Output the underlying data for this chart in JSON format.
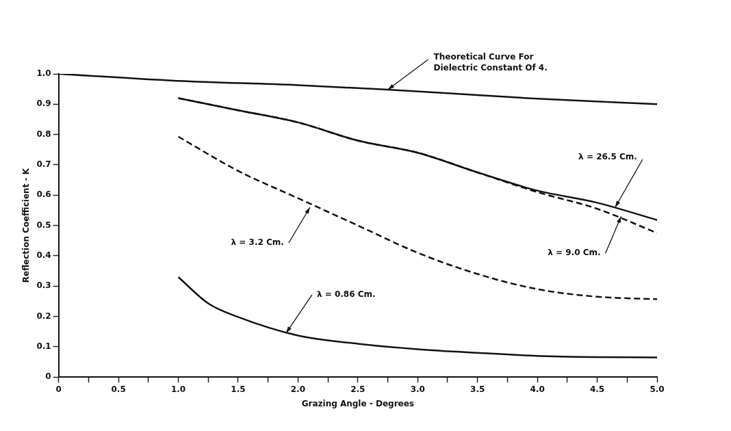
{
  "chart_data": {
    "type": "line",
    "xlabel": "Grazing Angle - Degrees",
    "ylabel": "Reflection Coefficient - K",
    "xlim": [
      0,
      5
    ],
    "ylim": [
      0,
      1
    ],
    "xticks": [
      0,
      {
        "value": 0.25,
        "label": null
      },
      0.5,
      {
        "value": 0.75,
        "label": null
      },
      {
        "value": 1,
        "label": "1.0"
      },
      {
        "value": 1.25,
        "label": null
      },
      1.5,
      {
        "value": 1.75,
        "label": null
      },
      {
        "value": 2,
        "label": "2.0"
      },
      {
        "value": 2.25,
        "label": null
      },
      2.5,
      {
        "value": 2.75,
        "label": null
      },
      {
        "value": 3,
        "label": "3.0"
      },
      {
        "value": 3.25,
        "label": null
      },
      3.5,
      {
        "value": 3.75,
        "label": null
      },
      {
        "value": 4,
        "label": "4.0"
      },
      {
        "value": 4.25,
        "label": null
      },
      4.5,
      {
        "value": 4.75,
        "label": null
      },
      {
        "value": 5,
        "label": "5.0"
      }
    ],
    "yticks": [
      0,
      0.1,
      0.2,
      0.3,
      0.4,
      0.5,
      0.6,
      0.7,
      0.8,
      0.9,
      {
        "value": 1,
        "label": "1.0"
      }
    ],
    "grid": false,
    "legend": false,
    "marker": "none",
    "series": [
      {
        "color": "#111111",
        "line_style": "solid",
        "x": [
          0,
          1,
          2,
          2.75,
          3.5,
          4,
          5
        ],
        "values": [
          1.0,
          0.977,
          0.963,
          0.948,
          0.93,
          0.918,
          0.9
        ]
      },
      {
        "color": "#111111",
        "line_style": "solid",
        "x": [
          1,
          1.5,
          2,
          2.5,
          3,
          3.5,
          4,
          4.5,
          5
        ],
        "values": [
          0.92,
          0.88,
          0.84,
          0.78,
          0.74,
          0.675,
          0.615,
          0.575,
          0.518
        ]
      },
      {
        "color": "#111111",
        "line_style": "dashed",
        "x": [
          1,
          1.5,
          2,
          2.5,
          3,
          3.5,
          4,
          4.5,
          5
        ],
        "values": [
          0.92,
          0.88,
          0.84,
          0.78,
          0.74,
          0.675,
          0.61,
          0.555,
          0.475
        ]
      },
      {
        "color": "#111111",
        "line_style": "dashed",
        "x": [
          1,
          1.5,
          2,
          2.5,
          3,
          3.5,
          4,
          4.5,
          5
        ],
        "values": [
          0.793,
          0.68,
          0.59,
          0.5,
          0.41,
          0.34,
          0.29,
          0.265,
          0.257
        ]
      },
      {
        "color": "#111111",
        "line_style": "solid",
        "x": [
          1,
          1.25,
          1.5,
          2,
          2.5,
          3,
          3.5,
          4,
          4.5,
          5
        ],
        "values": [
          0.33,
          0.243,
          0.198,
          0.137,
          0.11,
          0.092,
          0.08,
          0.07,
          0.066,
          0.065
        ]
      }
    ],
    "annotations": [
      {
        "text": "Theoretical Curve For\nDielectric Constant Of 4.",
        "x": 2.75,
        "y": 0.948
      },
      {
        "text": "λ = 26.5 Cm.",
        "x": 4.65,
        "y": 0.56
      },
      {
        "text": "λ = 9.0 Cm.",
        "x": 4.7,
        "y": 0.53
      },
      {
        "text": "λ = 3.2 Cm.",
        "x": 2.1,
        "y": 0.56
      },
      {
        "text": "λ = 0.86 Cm.",
        "x": 1.9,
        "y": 0.145
      }
    ]
  }
}
